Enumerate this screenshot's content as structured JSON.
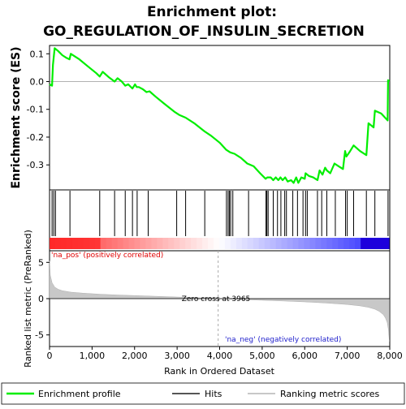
{
  "title_line1": "Enrichment plot:",
  "title_line2": "GO_REGULATION_OF_INSULIN_SECRETION",
  "colors": {
    "enrichment_line": "#00ee00",
    "hits": "#000000",
    "metric_fill": "#c8c8c8",
    "pos_label": "#e00000",
    "neg_label": "#2020cc",
    "zero_line": "#999999"
  },
  "chart_data": [
    {
      "type": "line",
      "panel": "enrichment",
      "ylabel": "Enrichment score (ES)",
      "ylim": [
        -0.39,
        0.13
      ],
      "xlim": [
        0,
        8000
      ],
      "yticks": [
        "0.1",
        "0.0",
        "-0.1",
        "-0.2",
        "-0.3"
      ],
      "ytick_values": [
        0.1,
        0.0,
        -0.1,
        -0.2,
        -0.3
      ],
      "series": [
        {
          "x": [
            0,
            60,
            80,
            120,
            200,
            300,
            400,
            470,
            500,
            700,
            900,
            1100,
            1180,
            1250,
            1400,
            1530,
            1600,
            1700,
            1780,
            1850,
            1950,
            2010,
            2050,
            2100,
            2200,
            2280,
            2350,
            2500,
            2700,
            2950,
            3050,
            3200,
            3400,
            3650,
            3800,
            4000,
            4150,
            4250,
            4350,
            4500,
            4650,
            4800,
            4950,
            5080,
            5120,
            5200,
            5260,
            5320,
            5380,
            5430,
            5480,
            5540,
            5600,
            5680,
            5740,
            5800,
            5850,
            5920,
            6000,
            6020,
            6100,
            6200,
            6300,
            6350,
            6420,
            6480,
            6520,
            6600,
            6700,
            6800,
            6900,
            6950,
            6980,
            7050,
            7150,
            7300,
            7450,
            7500,
            7620,
            7650,
            7800,
            7950,
            7960,
            7990
          ],
          "y": [
            -0.01,
            -0.015,
            0.06,
            0.12,
            0.11,
            0.095,
            0.085,
            0.08,
            0.1,
            0.08,
            0.055,
            0.03,
            0.018,
            0.035,
            0.015,
            0.0,
            0.012,
            0.0,
            -0.015,
            -0.01,
            -0.025,
            -0.01,
            -0.02,
            -0.02,
            -0.028,
            -0.038,
            -0.035,
            -0.055,
            -0.08,
            -0.11,
            -0.12,
            -0.13,
            -0.15,
            -0.18,
            -0.195,
            -0.22,
            -0.245,
            -0.255,
            -0.26,
            -0.275,
            -0.295,
            -0.305,
            -0.33,
            -0.35,
            -0.345,
            -0.345,
            -0.355,
            -0.345,
            -0.355,
            -0.345,
            -0.355,
            -0.345,
            -0.36,
            -0.355,
            -0.365,
            -0.345,
            -0.365,
            -0.345,
            -0.35,
            -0.33,
            -0.34,
            -0.345,
            -0.355,
            -0.32,
            -0.335,
            -0.31,
            -0.32,
            -0.33,
            -0.295,
            -0.305,
            -0.315,
            -0.25,
            -0.27,
            -0.255,
            -0.23,
            -0.25,
            -0.265,
            -0.15,
            -0.165,
            -0.105,
            -0.115,
            -0.14,
            0.005,
            0.0
          ]
        }
      ],
      "legend": [
        "Enrichment profile",
        "Hits",
        "Ranking metric scores"
      ],
      "legend_position": "bottom"
    },
    {
      "type": "barcode",
      "panel": "hits",
      "hit_positions": [
        60,
        100,
        140,
        480,
        1180,
        1530,
        1780,
        1950,
        2060,
        2320,
        2990,
        3200,
        3650,
        4160,
        4200,
        4230,
        4260,
        4310,
        4680,
        5090,
        5110,
        5140,
        5260,
        5360,
        5440,
        5530,
        5570,
        5720,
        5830,
        5960,
        6020,
        6060,
        6300,
        6400,
        6520,
        6720,
        6960,
        7000,
        7150,
        7450,
        7650,
        7960
      ]
    },
    {
      "type": "area",
      "panel": "ranked_metric",
      "ylabel": "Ranked list metric (PreRanked)",
      "xlabel": "Rank in Ordered Dataset",
      "ylim": [
        -6.6,
        6.6
      ],
      "xlim": [
        0,
        8000
      ],
      "yticks": [
        "5",
        "0",
        "-5"
      ],
      "ytick_values": [
        5,
        0,
        -5
      ],
      "xticks": [
        "0",
        "1,000",
        "2,000",
        "3,000",
        "4,000",
        "5,000",
        "6,000",
        "7,000",
        "8,000"
      ],
      "xtick_values": [
        0,
        1000,
        2000,
        3000,
        4000,
        5000,
        6000,
        7000,
        8000
      ],
      "zero_cross_label": "Zero cross at 3965",
      "zero_cross": 3965,
      "pos_label": "'na_pos' (positively correlated)",
      "neg_label": "'na_neg' (negatively correlated)",
      "x": [
        0,
        20,
        60,
        120,
        200,
        300,
        500,
        800,
        1200,
        1600,
        2000,
        2500,
        3000,
        3500,
        3965,
        4500,
        5000,
        5500,
        6000,
        6500,
        7000,
        7300,
        7500,
        7650,
        7750,
        7850,
        7900,
        7940,
        7970,
        7990
      ],
      "values": [
        5.2,
        3.2,
        2.2,
        1.6,
        1.3,
        1.1,
        0.9,
        0.75,
        0.6,
        0.5,
        0.42,
        0.32,
        0.22,
        0.12,
        0.0,
        -0.12,
        -0.22,
        -0.33,
        -0.45,
        -0.6,
        -0.8,
        -1.0,
        -1.2,
        -1.45,
        -1.75,
        -2.2,
        -2.7,
        -3.3,
        -4.3,
        -5.9
      ]
    }
  ]
}
